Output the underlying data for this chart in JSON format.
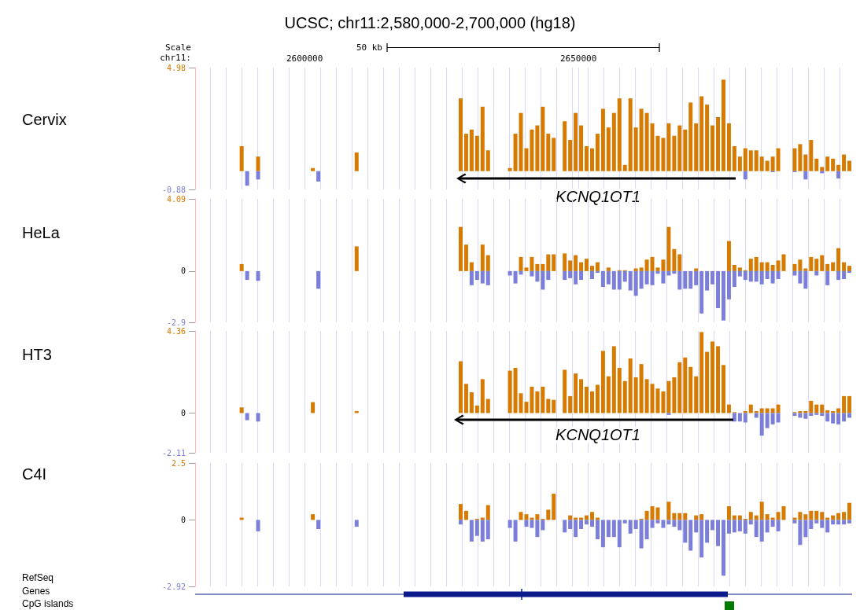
{
  "chart_data": [
    {
      "type": "bar",
      "title": "UCSC; chr11:2,580,000-2,700,000 (hg18)",
      "ylabel": "Cervix",
      "annotations": [
        "Scale",
        "chr11:",
        "50 kb",
        "KCNQ1OT1"
      ],
      "x": [
        2588500,
        2589500,
        2591500,
        2601500,
        2602500,
        2609500,
        2628500,
        2629500,
        2630500,
        2631500,
        2632500,
        2633500,
        2634500,
        2635500,
        2636500,
        2637500,
        2638500,
        2639500,
        2640500,
        2641500,
        2642500,
        2643500,
        2644500,
        2645500,
        2646500,
        2647500,
        2648500,
        2649500,
        2650500,
        2651500,
        2652500,
        2653500,
        2654500,
        2655500,
        2656500,
        2657500,
        2658500,
        2659500,
        2660500,
        2661500,
        2662500,
        2663500,
        2664500,
        2665500,
        2666500,
        2667500,
        2668500,
        2669500,
        2670500,
        2671500,
        2672500,
        2673500,
        2674500,
        2675500,
        2676500,
        2677500,
        2678500,
        2679500,
        2680500,
        2681500,
        2682500,
        2683500,
        2684500,
        2685500,
        2686500,
        2687500,
        2688500,
        2689500,
        2690500,
        2691500,
        2692500,
        2693500,
        2694500,
        2695500,
        2696500,
        2697500,
        2698500,
        2699500
      ],
      "series": [
        {
          "color": "#d67a00",
          "values": [
            1.2,
            null,
            0.7,
            0.15,
            null,
            0.9,
            3.5,
            1.8,
            2.0,
            1.7,
            3.1,
            1.0,
            null,
            null,
            null,
            0.15,
            1.8,
            2.8,
            1.1,
            2.0,
            2.2,
            3.1,
            1.8,
            1.6,
            null,
            2.4,
            1.5,
            2.8,
            2.2,
            1.2,
            1.1,
            1.8,
            3.0,
            2.1,
            2.8,
            3.5,
            0.3,
            3.5,
            2.1,
            3.0,
            2.8,
            2.3,
            1.7,
            1.6,
            2.3,
            1.7,
            2.2,
            2.0,
            3.3,
            2.3,
            3.6,
            3.2,
            2.2,
            2.6,
            4.4,
            2.3,
            1.2,
            0.7,
            1.1,
            1.0,
            1.0,
            0.7,
            0.5,
            0.7,
            1.1,
            null,
            null,
            1.1,
            1.3,
            0.8,
            1.5,
            0.6,
            0.2,
            0.7,
            0.6,
            0.3,
            0.8,
            0.5
          ]
        },
        {
          "color": "#7b7fd9",
          "values": [
            null,
            -0.7,
            -0.4,
            null,
            -0.5,
            null,
            null,
            null,
            null,
            null,
            null,
            null,
            null,
            null,
            null,
            null,
            null,
            null,
            null,
            null,
            null,
            null,
            null,
            null,
            null,
            null,
            null,
            null,
            null,
            null,
            null,
            null,
            null,
            null,
            null,
            null,
            null,
            null,
            null,
            null,
            null,
            null,
            null,
            null,
            null,
            null,
            null,
            null,
            null,
            null,
            null,
            null,
            null,
            null,
            null,
            null,
            null,
            null,
            -0.4,
            null,
            null,
            null,
            null,
            -0.05,
            null,
            null,
            null,
            -0.05,
            null,
            -0.4,
            null,
            null,
            -0.1,
            null,
            null,
            -0.35,
            null,
            null
          ]
        }
      ],
      "xlim": [
        2580000,
        2700000
      ],
      "ylim": [
        -0.88,
        4.98
      ],
      "xticks": [
        {
          "value": 2582750,
          "label": null
        },
        {
          "value": 2585625,
          "label": null
        },
        {
          "value": 2588500,
          "label": null
        },
        {
          "value": 2591375,
          "label": null
        },
        {
          "value": 2594250,
          "label": null
        },
        {
          "value": 2597125,
          "label": null
        },
        2600000,
        {
          "value": 2602875,
          "label": null
        },
        {
          "value": 2605750,
          "label": null
        },
        {
          "value": 2608625,
          "label": null
        },
        {
          "value": 2611500,
          "label": null
        },
        {
          "value": 2614375,
          "label": null
        },
        {
          "value": 2617250,
          "label": null
        },
        {
          "value": 2620125,
          "label": null
        },
        {
          "value": 2623000,
          "label": null
        },
        {
          "value": 2625875,
          "label": null
        },
        {
          "value": 2628750,
          "label": null
        },
        {
          "value": 2631625,
          "label": null
        },
        {
          "value": 2634500,
          "label": null
        },
        {
          "value": 2637375,
          "label": null
        },
        {
          "value": 2640250,
          "label": null
        },
        {
          "value": 2643125,
          "label": null
        },
        {
          "value": 2646000,
          "label": null
        },
        {
          "value": 2648875,
          "label": null
        },
        2650000,
        {
          "value": 2651750,
          "label": null
        },
        {
          "value": 2654625,
          "label": null
        },
        {
          "value": 2657500,
          "label": null
        },
        {
          "value": 2660375,
          "label": null
        },
        {
          "value": 2663250,
          "label": null
        },
        {
          "value": 2666125,
          "label": null
        },
        {
          "value": 2669000,
          "label": null
        },
        {
          "value": 2671875,
          "label": null
        },
        {
          "value": 2674750,
          "label": null
        },
        {
          "value": 2677625,
          "label": null
        },
        {
          "value": 2680500,
          "label": null
        },
        {
          "value": 2683375,
          "label": null
        },
        {
          "value": 2686250,
          "label": null
        },
        {
          "value": 2689125,
          "label": null
        },
        {
          "value": 2692000,
          "label": null
        },
        {
          "value": 2694875,
          "label": null
        },
        {
          "value": 2697750,
          "label": null
        }
      ],
      "yticks": [
        -0.88,
        4.98
      ],
      "grid": "x",
      "stacked": true
    },
    {
      "type": "bar",
      "ylabel": "HeLa",
      "x": [
        2588500,
        2589500,
        2591500,
        2601500,
        2602500,
        2609500,
        2628500,
        2629500,
        2630500,
        2631500,
        2632500,
        2633500,
        2634500,
        2635500,
        2636500,
        2637500,
        2638500,
        2639500,
        2640500,
        2641500,
        2642500,
        2643500,
        2644500,
        2645500,
        2646500,
        2647500,
        2648500,
        2649500,
        2650500,
        2651500,
        2652500,
        2653500,
        2654500,
        2655500,
        2656500,
        2657500,
        2658500,
        2659500,
        2660500,
        2661500,
        2662500,
        2663500,
        2664500,
        2665500,
        2666500,
        2667500,
        2668500,
        2669500,
        2670500,
        2671500,
        2672500,
        2673500,
        2674500,
        2675500,
        2676500,
        2677500,
        2678500,
        2679500,
        2680500,
        2681500,
        2682500,
        2683500,
        2684500,
        2685500,
        2686500,
        2687500,
        2688500,
        2689500,
        2690500,
        2691500,
        2692500,
        2693500,
        2694500,
        2695500,
        2696500,
        2697500,
        2698500,
        2699500
      ],
      "series": [
        {
          "color": "#d67a00",
          "values": [
            0.4,
            null,
            null,
            null,
            null,
            1.4,
            2.5,
            1.5,
            0.5,
            null,
            1.5,
            0.9,
            null,
            null,
            null,
            null,
            null,
            0.8,
            0.2,
            0.8,
            0.4,
            0.4,
            0.95,
            0.95,
            null,
            1.0,
            0.6,
            0.9,
            0.5,
            0.7,
            0.3,
            0.5,
            null,
            0.2,
            null,
            0.05,
            0.05,
            null,
            0.15,
            0.2,
            0.65,
            0.8,
            0.2,
            0.65,
            2.5,
            1.25,
            0.95,
            null,
            null,
            0.15,
            null,
            null,
            null,
            null,
            null,
            1.7,
            0.35,
            0.2,
            0.05,
            0.7,
            0.8,
            0.5,
            0.5,
            0.35,
            0.6,
            0.95,
            null,
            0.4,
            0.65,
            0.15,
            0.8,
            0.7,
            0.9,
            0.4,
            0.5,
            1.3,
            0.5,
            0.3
          ]
        },
        {
          "color": "#7b7fd9",
          "values": [
            null,
            -0.5,
            -0.55,
            null,
            -1.0,
            null,
            null,
            null,
            -0.8,
            -0.5,
            -0.7,
            -0.8,
            null,
            null,
            null,
            -0.25,
            -0.7,
            -0.2,
            null,
            -0.3,
            -0.6,
            -1.05,
            -0.5,
            null,
            null,
            -0.5,
            -0.4,
            -0.75,
            -0.5,
            null,
            -0.45,
            -0.1,
            -0.9,
            -0.75,
            -1.05,
            -1.05,
            -0.6,
            -1.1,
            -1.4,
            -1.0,
            -0.75,
            -0.8,
            -0.15,
            -0.7,
            -0.25,
            -0.15,
            -1.05,
            -1.0,
            -1.0,
            -0.8,
            -2.4,
            -1.1,
            -0.75,
            -2.1,
            -2.8,
            -1.6,
            -0.9,
            -0.3,
            -0.5,
            -0.6,
            -0.6,
            -0.75,
            -0.45,
            -0.7,
            -0.45,
            null,
            null,
            -0.25,
            -0.7,
            -1.0,
            null,
            -0.25,
            null,
            -0.8,
            null,
            -0.5,
            -0.45,
            -0.1
          ]
        }
      ],
      "xlim": [
        2580000,
        2700000
      ],
      "ylim": [
        -2.9,
        4.09
      ],
      "xticks": [
        {
          "value": 2582750,
          "label": null
        },
        {
          "value": 2585625,
          "label": null
        },
        {
          "value": 2588500,
          "label": null
        },
        {
          "value": 2591375,
          "label": null
        },
        {
          "value": 2594250,
          "label": null
        },
        {
          "value": 2597125,
          "label": null
        },
        {
          "value": 2600000,
          "label": null
        },
        {
          "value": 2602875,
          "label": null
        },
        {
          "value": 2605750,
          "label": null
        },
        {
          "value": 2608625,
          "label": null
        },
        {
          "value": 2611500,
          "label": null
        },
        {
          "value": 2614375,
          "label": null
        },
        {
          "value": 2617250,
          "label": null
        },
        {
          "value": 2620125,
          "label": null
        },
        {
          "value": 2623000,
          "label": null
        },
        {
          "value": 2625875,
          "label": null
        },
        {
          "value": 2628750,
          "label": null
        },
        {
          "value": 2631625,
          "label": null
        },
        {
          "value": 2634500,
          "label": null
        },
        {
          "value": 2637375,
          "label": null
        },
        {
          "value": 2640250,
          "label": null
        },
        {
          "value": 2643125,
          "label": null
        },
        {
          "value": 2646000,
          "label": null
        },
        {
          "value": 2648875,
          "label": null
        },
        {
          "value": 2651750,
          "label": null
        },
        {
          "value": 2654625,
          "label": null
        },
        {
          "value": 2657500,
          "label": null
        },
        {
          "value": 2660375,
          "label": null
        },
        {
          "value": 2663250,
          "label": null
        },
        {
          "value": 2666125,
          "label": null
        },
        {
          "value": 2669000,
          "label": null
        },
        {
          "value": 2671875,
          "label": null
        },
        {
          "value": 2674750,
          "label": null
        },
        {
          "value": 2677625,
          "label": null
        },
        {
          "value": 2680500,
          "label": null
        },
        {
          "value": 2683375,
          "label": null
        },
        {
          "value": 2686250,
          "label": null
        },
        {
          "value": 2689125,
          "label": null
        },
        {
          "value": 2692000,
          "label": null
        },
        {
          "value": 2694875,
          "label": null
        },
        {
          "value": 2697750,
          "label": null
        }
      ],
      "yticks": [
        -2.9,
        0,
        4.09
      ],
      "grid": "x",
      "tick_labels": "y",
      "stacked": true
    },
    {
      "type": "bar",
      "ylabel": "HT3",
      "annotations": [
        "KCNQ1OT1"
      ],
      "x": [
        2588500,
        2589500,
        2591500,
        2601500,
        2602500,
        2609500,
        2628500,
        2629500,
        2630500,
        2631500,
        2632500,
        2633500,
        2634500,
        2635500,
        2636500,
        2637500,
        2638500,
        2639500,
        2640500,
        2641500,
        2642500,
        2643500,
        2644500,
        2645500,
        2646500,
        2647500,
        2648500,
        2649500,
        2650500,
        2651500,
        2652500,
        2653500,
        2654500,
        2655500,
        2656500,
        2657500,
        2658500,
        2659500,
        2660500,
        2661500,
        2662500,
        2663500,
        2664500,
        2665500,
        2666500,
        2667500,
        2668500,
        2669500,
        2670500,
        2671500,
        2672500,
        2673500,
        2674500,
        2675500,
        2676500,
        2677500,
        2678500,
        2679500,
        2680500,
        2681500,
        2682500,
        2683500,
        2684500,
        2685500,
        2686500,
        2687500,
        2688500,
        2689500,
        2690500,
        2691500,
        2692500,
        2693500,
        2694500,
        2695500,
        2696500,
        2697500,
        2698500,
        2699500
      ],
      "series": [
        {
          "color": "#d67a00",
          "values": [
            0.3,
            null,
            null,
            0.58,
            null,
            0.1,
            2.75,
            1.55,
            1.1,
            0.4,
            1.8,
            0.75,
            null,
            null,
            null,
            2.25,
            2.4,
            1.05,
            0.6,
            1.4,
            1.15,
            1.4,
            0.75,
            0.7,
            null,
            2.3,
            0.9,
            2.1,
            1.8,
            1.4,
            1.15,
            1.5,
            3.3,
            1.95,
            3.55,
            2.4,
            1.7,
            2.9,
            1.9,
            2.6,
            1.8,
            1.55,
            1.3,
            1.15,
            1.7,
            1.9,
            2.7,
            2.95,
            2.45,
            1.95,
            4.3,
            3.25,
            3.8,
            3.55,
            2.55,
            0.45,
            0.05,
            null,
            0.1,
            0.45,
            0.1,
            0.25,
            0.25,
            0.25,
            0.45,
            null,
            null,
            0.05,
            0.1,
            0.1,
            0.65,
            0.45,
            0.45,
            0.15,
            0.1,
            0.25,
            0.9,
            0.9
          ]
        },
        {
          "color": "#7b7fd9",
          "values": [
            null,
            -0.38,
            -0.45,
            null,
            null,
            null,
            null,
            null,
            null,
            null,
            null,
            null,
            null,
            null,
            null,
            null,
            null,
            null,
            null,
            null,
            null,
            null,
            null,
            null,
            null,
            null,
            null,
            null,
            null,
            null,
            null,
            null,
            null,
            null,
            null,
            null,
            null,
            null,
            null,
            null,
            null,
            null,
            null,
            null,
            -0.1,
            null,
            null,
            null,
            null,
            null,
            null,
            null,
            null,
            null,
            null,
            null,
            -0.45,
            -0.45,
            -0.5,
            null,
            -0.25,
            -1.2,
            -0.8,
            -0.6,
            -0.5,
            null,
            null,
            -0.15,
            -0.25,
            -0.3,
            -0.15,
            -0.1,
            -0.15,
            -0.45,
            -0.55,
            -0.6,
            -0.45,
            -0.25
          ]
        }
      ],
      "xlim": [
        2580000,
        2700000
      ],
      "ylim": [
        -2.11,
        4.36
      ],
      "xticks": [
        {
          "value": 2582750,
          "label": null
        },
        {
          "value": 2585625,
          "label": null
        },
        {
          "value": 2588500,
          "label": null
        },
        {
          "value": 2591375,
          "label": null
        },
        {
          "value": 2594250,
          "label": null
        },
        {
          "value": 2597125,
          "label": null
        },
        {
          "value": 2600000,
          "label": null
        },
        {
          "value": 2602875,
          "label": null
        },
        {
          "value": 2605750,
          "label": null
        },
        {
          "value": 2608625,
          "label": null
        },
        {
          "value": 2611500,
          "label": null
        },
        {
          "value": 2614375,
          "label": null
        },
        {
          "value": 2617250,
          "label": null
        },
        {
          "value": 2620125,
          "label": null
        },
        {
          "value": 2623000,
          "label": null
        },
        {
          "value": 2625875,
          "label": null
        },
        {
          "value": 2628750,
          "label": null
        },
        {
          "value": 2631625,
          "label": null
        },
        {
          "value": 2634500,
          "label": null
        },
        {
          "value": 2637375,
          "label": null
        },
        {
          "value": 2640250,
          "label": null
        },
        {
          "value": 2643125,
          "label": null
        },
        {
          "value": 2646000,
          "label": null
        },
        {
          "value": 2648875,
          "label": null
        },
        {
          "value": 2651750,
          "label": null
        },
        {
          "value": 2654625,
          "label": null
        },
        {
          "value": 2657500,
          "label": null
        },
        {
          "value": 2660375,
          "label": null
        },
        {
          "value": 2663250,
          "label": null
        },
        {
          "value": 2666125,
          "label": null
        },
        {
          "value": 2669000,
          "label": null
        },
        {
          "value": 2671875,
          "label": null
        },
        {
          "value": 2674750,
          "label": null
        },
        {
          "value": 2677625,
          "label": null
        },
        {
          "value": 2680500,
          "label": null
        },
        {
          "value": 2683375,
          "label": null
        },
        {
          "value": 2686250,
          "label": null
        },
        {
          "value": 2689125,
          "label": null
        },
        {
          "value": 2692000,
          "label": null
        },
        {
          "value": 2694875,
          "label": null
        },
        {
          "value": 2697750,
          "label": null
        }
      ],
      "yticks": [
        -2.11,
        0,
        4.36
      ],
      "grid": "x",
      "tick_labels": "y",
      "stacked": true
    },
    {
      "type": "bar",
      "ylabel": "C4I",
      "annotations": [
        "RefSeq",
        "Genes",
        "CpG islands"
      ],
      "x": [
        2588500,
        2589500,
        2591500,
        2601500,
        2602500,
        2609500,
        2628500,
        2629500,
        2630500,
        2631500,
        2632500,
        2633500,
        2634500,
        2635500,
        2636500,
        2637500,
        2638500,
        2639500,
        2640500,
        2641500,
        2642500,
        2643500,
        2644500,
        2645500,
        2646500,
        2647500,
        2648500,
        2649500,
        2650500,
        2651500,
        2652500,
        2653500,
        2654500,
        2655500,
        2656500,
        2657500,
        2658500,
        2659500,
        2660500,
        2661500,
        2662500,
        2663500,
        2664500,
        2665500,
        2666500,
        2667500,
        2668500,
        2669500,
        2670500,
        2671500,
        2672500,
        2673500,
        2674500,
        2675500,
        2676500,
        2677500,
        2678500,
        2679500,
        2680500,
        2681500,
        2682500,
        2683500,
        2684500,
        2685500,
        2686500,
        2687500,
        2688500,
        2689500,
        2690500,
        2691500,
        2692500,
        2693500,
        2694500,
        2695500,
        2696500,
        2697500,
        2698500,
        2699500
      ],
      "series": [
        {
          "color": "#d67a00",
          "values": [
            0.1,
            null,
            null,
            0.25,
            null,
            null,
            0.7,
            0.4,
            null,
            0.05,
            0.1,
            0.65,
            null,
            null,
            null,
            null,
            null,
            0.35,
            0.25,
            0.1,
            0.25,
            0.05,
            0.45,
            1.15,
            null,
            null,
            0.2,
            0.1,
            0.1,
            0.2,
            0.35,
            0.1,
            null,
            null,
            null,
            null,
            null,
            null,
            null,
            0.05,
            0.4,
            0.6,
            0.55,
            null,
            0.8,
            0.3,
            0.3,
            0.3,
            null,
            0.2,
            0.25,
            null,
            null,
            null,
            null,
            0.6,
            0.2,
            0.2,
            0.05,
            0.35,
            0.2,
            0.8,
            0.25,
            0.1,
            0.35,
            0.6,
            null,
            0.1,
            0.35,
            0.25,
            0.4,
            0.4,
            0.35,
            0.1,
            0.2,
            0.3,
            0.35,
            0.75
          ]
        },
        {
          "color": "#7b7fd9",
          "values": [
            null,
            null,
            -0.5,
            null,
            -0.4,
            -0.3,
            -0.2,
            null,
            -0.95,
            -0.7,
            -0.95,
            -0.85,
            null,
            null,
            null,
            -0.35,
            -0.95,
            null,
            -0.3,
            -0.35,
            -0.75,
            -0.45,
            null,
            null,
            null,
            -0.55,
            -0.4,
            -0.75,
            -0.4,
            -0.2,
            -0.3,
            -0.85,
            -1.2,
            -0.75,
            -0.75,
            -1.2,
            -0.15,
            -0.6,
            -0.4,
            -1.25,
            -0.85,
            -0.35,
            -0.15,
            -0.35,
            -0.2,
            -0.3,
            -0.45,
            -1.0,
            -1.35,
            -0.55,
            -1.65,
            -1.0,
            -0.45,
            -1.15,
            -2.45,
            -0.6,
            -0.55,
            -0.5,
            -0.6,
            -0.2,
            -0.75,
            -0.95,
            -0.55,
            -0.3,
            -0.5,
            null,
            null,
            -0.15,
            -1.1,
            -0.75,
            -0.4,
            -0.15,
            -0.35,
            -0.55,
            -0.2,
            -0.2,
            -0.2,
            -0.15
          ]
        }
      ],
      "xlim": [
        2580000,
        2700000
      ],
      "ylim": [
        -2.92,
        2.5
      ],
      "xticks": [
        {
          "value": 2582750,
          "label": null
        },
        {
          "value": 2585625,
          "label": null
        },
        {
          "value": 2588500,
          "label": null
        },
        {
          "value": 2591375,
          "label": null
        },
        {
          "value": 2594250,
          "label": null
        },
        {
          "value": 2597125,
          "label": null
        },
        {
          "value": 2600000,
          "label": null
        },
        {
          "value": 2602875,
          "label": null
        },
        {
          "value": 2605750,
          "label": null
        },
        {
          "value": 2608625,
          "label": null
        },
        {
          "value": 2611500,
          "label": null
        },
        {
          "value": 2614375,
          "label": null
        },
        {
          "value": 2617250,
          "label": null
        },
        {
          "value": 2620125,
          "label": null
        },
        {
          "value": 2623000,
          "label": null
        },
        {
          "value": 2625875,
          "label": null
        },
        {
          "value": 2628750,
          "label": null
        },
        {
          "value": 2631625,
          "label": null
        },
        {
          "value": 2634500,
          "label": null
        },
        {
          "value": 2637375,
          "label": null
        },
        {
          "value": 2640250,
          "label": null
        },
        {
          "value": 2643125,
          "label": null
        },
        {
          "value": 2646000,
          "label": null
        },
        {
          "value": 2648875,
          "label": null
        },
        {
          "value": 2651750,
          "label": null
        },
        {
          "value": 2654625,
          "label": null
        },
        {
          "value": 2657500,
          "label": null
        },
        {
          "value": 2660375,
          "label": null
        },
        {
          "value": 2663250,
          "label": null
        },
        {
          "value": 2666125,
          "label": null
        },
        {
          "value": 2669000,
          "label": null
        },
        {
          "value": 2671875,
          "label": null
        },
        {
          "value": 2674750,
          "label": null
        },
        {
          "value": 2677625,
          "label": null
        },
        {
          "value": 2680500,
          "label": null
        },
        {
          "value": 2683375,
          "label": null
        },
        {
          "value": 2686250,
          "label": null
        },
        {
          "value": 2689125,
          "label": null
        },
        {
          "value": 2692000,
          "label": null
        },
        {
          "value": 2694875,
          "label": null
        },
        {
          "value": 2697750,
          "label": null
        }
      ],
      "yticks": [
        -2.92,
        0,
        2.5
      ],
      "grid": "x",
      "tick_labels": "y",
      "stacked": true
    }
  ]
}
